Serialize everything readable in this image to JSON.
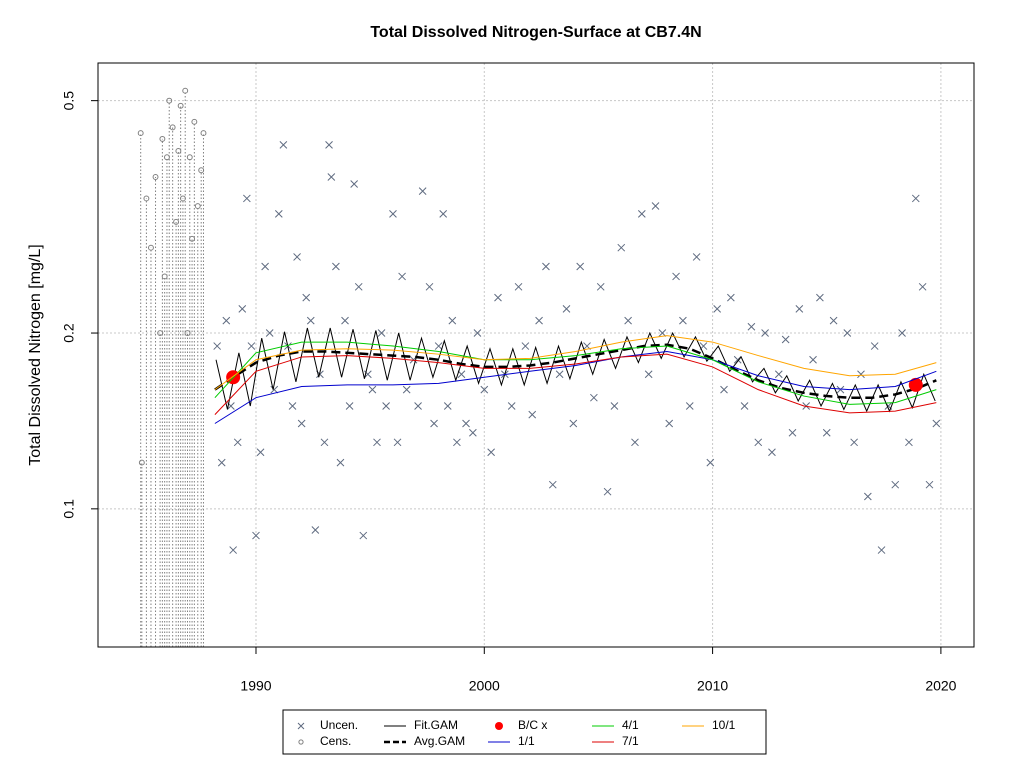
{
  "chart_data": {
    "type": "scatter",
    "title": "Total Dissolved Nitrogen-Surface at CB7.4N",
    "ylabel": "Total Dissolved Nitrogen [mg/L]",
    "log_y": true,
    "grid": true,
    "legend": "bottom",
    "xlim": [
      1983.08,
      2021.45
    ],
    "ylim": [
      0.058,
      0.58
    ],
    "xticks": [
      1990,
      2000,
      2010,
      2020
    ],
    "yticks": [
      0.1,
      0.2,
      0.5
    ],
    "series": [
      {
        "name": "Uncen.",
        "kind": "points",
        "marker": "x",
        "color": "#5f6b80",
        "x": [
          1988.3,
          1988.5,
          1988.7,
          1988.9,
          1989.0,
          1989.2,
          1989.4,
          1989.6,
          1989.8,
          1990.0,
          1990.2,
          1990.4,
          1990.6,
          1990.8,
          1991.0,
          1991.2,
          1991.4,
          1991.6,
          1991.8,
          1992.0,
          1992.2,
          1992.4,
          1992.6,
          1992.8,
          1993.0,
          1993.2,
          1993.3,
          1993.5,
          1993.7,
          1993.9,
          1994.1,
          1994.3,
          1994.5,
          1994.7,
          1994.9,
          1995.1,
          1995.3,
          1995.5,
          1995.7,
          1996.0,
          1996.2,
          1996.4,
          1996.6,
          1996.9,
          1997.1,
          1997.3,
          1997.6,
          1997.8,
          1998.0,
          1998.2,
          1998.4,
          1998.6,
          1998.8,
          1999.0,
          1999.2,
          1999.5,
          1999.7,
          2000.0,
          2000.3,
          2000.6,
          2000.9,
          2001.2,
          2001.5,
          2001.8,
          2002.1,
          2002.4,
          2002.7,
          2003.0,
          2003.3,
          2003.6,
          2003.9,
          2004.2,
          2004.5,
          2004.8,
          2005.1,
          2005.4,
          2005.7,
          2006.0,
          2006.3,
          2006.6,
          2006.9,
          2007.2,
          2007.5,
          2007.8,
          2008.1,
          2008.4,
          2008.7,
          2009.0,
          2009.3,
          2009.6,
          2009.9,
          2010.2,
          2010.5,
          2010.8,
          2011.1,
          2011.4,
          2011.7,
          2012.0,
          2012.3,
          2012.6,
          2012.9,
          2013.2,
          2013.5,
          2013.8,
          2014.1,
          2014.4,
          2014.7,
          2015.0,
          2015.3,
          2015.6,
          2015.9,
          2016.2,
          2016.5,
          2016.8,
          2017.1,
          2017.4,
          2017.7,
          2018.0,
          2018.3,
          2018.6,
          2018.9,
          2019.2,
          2019.5,
          2019.8
        ],
        "values": [
          0.19,
          0.12,
          0.21,
          0.15,
          0.085,
          0.13,
          0.22,
          0.34,
          0.19,
          0.09,
          0.125,
          0.26,
          0.2,
          0.16,
          0.32,
          0.42,
          0.19,
          0.15,
          0.27,
          0.14,
          0.23,
          0.21,
          0.092,
          0.17,
          0.13,
          0.42,
          0.37,
          0.26,
          0.12,
          0.21,
          0.15,
          0.36,
          0.24,
          0.09,
          0.17,
          0.16,
          0.13,
          0.2,
          0.15,
          0.32,
          0.13,
          0.25,
          0.16,
          0.18,
          0.15,
          0.35,
          0.24,
          0.14,
          0.19,
          0.32,
          0.15,
          0.21,
          0.13,
          0.17,
          0.14,
          0.135,
          0.2,
          0.16,
          0.125,
          0.23,
          0.17,
          0.15,
          0.24,
          0.19,
          0.145,
          0.21,
          0.26,
          0.11,
          0.17,
          0.22,
          0.14,
          0.26,
          0.19,
          0.155,
          0.24,
          0.107,
          0.15,
          0.28,
          0.21,
          0.13,
          0.32,
          0.17,
          0.33,
          0.2,
          0.14,
          0.25,
          0.21,
          0.15,
          0.27,
          0.19,
          0.12,
          0.22,
          0.16,
          0.23,
          0.18,
          0.15,
          0.205,
          0.13,
          0.2,
          0.125,
          0.17,
          0.195,
          0.135,
          0.22,
          0.15,
          0.18,
          0.23,
          0.135,
          0.21,
          0.16,
          0.2,
          0.13,
          0.17,
          0.105,
          0.19,
          0.085,
          0.15,
          0.11,
          0.2,
          0.13,
          0.34,
          0.24,
          0.11,
          0.14
        ]
      },
      {
        "name": "Cens.",
        "kind": "points",
        "marker": "o",
        "censored": true,
        "color": "#808080",
        "x": [
          1984.95,
          1985.0,
          1985.2,
          1985.4,
          1985.6,
          1985.8,
          1985.9,
          1986.0,
          1986.1,
          1986.2,
          1986.35,
          1986.5,
          1986.6,
          1986.7,
          1986.8,
          1986.9,
          1987.0,
          1987.1,
          1987.2,
          1987.3,
          1987.45,
          1987.6,
          1987.7
        ],
        "values": [
          0.44,
          0.12,
          0.34,
          0.28,
          0.37,
          0.2,
          0.43,
          0.25,
          0.4,
          0.5,
          0.45,
          0.31,
          0.41,
          0.49,
          0.34,
          0.52,
          0.2,
          0.4,
          0.29,
          0.46,
          0.33,
          0.38,
          0.44
        ]
      },
      {
        "name": "Fit.GAM",
        "kind": "line",
        "color": "#000000",
        "width": 1,
        "x": [
          1988.25,
          1988.75,
          1989.25,
          1989.75,
          1990.25,
          1990.75,
          1991.25,
          1991.75,
          1992.25,
          1992.75,
          1993.25,
          1993.75,
          1994.25,
          1994.75,
          1995.25,
          1995.75,
          1996.25,
          1996.75,
          1997.25,
          1997.75,
          1998.25,
          1998.75,
          1999.25,
          1999.75,
          2000.25,
          2000.75,
          2001.25,
          2001.75,
          2002.25,
          2002.75,
          2003.25,
          2003.75,
          2004.25,
          2004.75,
          2005.25,
          2005.75,
          2006.25,
          2006.75,
          2007.25,
          2007.75,
          2008.25,
          2008.75,
          2009.25,
          2009.75,
          2010.25,
          2010.75,
          2011.25,
          2011.75,
          2012.25,
          2012.75,
          2013.25,
          2013.75,
          2014.25,
          2014.75,
          2015.25,
          2015.75,
          2016.25,
          2016.75,
          2017.25,
          2017.75,
          2018.25,
          2018.75,
          2019.25,
          2019.75
        ],
        "values": [
          0.18,
          0.148,
          0.185,
          0.15,
          0.196,
          0.16,
          0.201,
          0.165,
          0.204,
          0.168,
          0.204,
          0.168,
          0.203,
          0.167,
          0.202,
          0.166,
          0.2,
          0.166,
          0.196,
          0.168,
          0.194,
          0.166,
          0.19,
          0.164,
          0.188,
          0.163,
          0.188,
          0.163,
          0.189,
          0.164,
          0.19,
          0.167,
          0.193,
          0.17,
          0.195,
          0.174,
          0.197,
          0.178,
          0.2,
          0.181,
          0.2,
          0.182,
          0.197,
          0.179,
          0.19,
          0.172,
          0.182,
          0.165,
          0.174,
          0.158,
          0.169,
          0.153,
          0.166,
          0.15,
          0.164,
          0.148,
          0.163,
          0.147,
          0.163,
          0.147,
          0.165,
          0.149,
          0.17,
          0.153
        ]
      },
      {
        "name": "Avg.GAM",
        "kind": "line",
        "dashed": true,
        "color": "#000000",
        "width": 2.5,
        "x": [
          1988.2,
          1989,
          1990,
          1991,
          1992,
          1993,
          1994,
          1995,
          1996,
          1997,
          1998,
          1999,
          2000,
          2001,
          2002,
          2003,
          2004,
          2005,
          2006,
          2007,
          2008,
          2009,
          2010,
          2011,
          2012,
          2013,
          2014,
          2015,
          2016,
          2017,
          2018,
          2019,
          2019.8
        ],
        "values": [
          0.16,
          0.168,
          0.178,
          0.183,
          0.186,
          0.186,
          0.185,
          0.184,
          0.183,
          0.182,
          0.18,
          0.177,
          0.175,
          0.175,
          0.176,
          0.178,
          0.181,
          0.184,
          0.187,
          0.19,
          0.191,
          0.188,
          0.181,
          0.173,
          0.166,
          0.161,
          0.158,
          0.156,
          0.155,
          0.155,
          0.157,
          0.161,
          0.166
        ]
      },
      {
        "name": "B/C x",
        "kind": "points",
        "marker": "dot",
        "color": "#ff0000",
        "x": [
          1989.0,
          2018.9
        ],
        "values": [
          0.168,
          0.163
        ]
      },
      {
        "name": "1/1",
        "kind": "line",
        "color": "#0000cd",
        "width": 1,
        "x": [
          1988.2,
          1990,
          1992,
          1994,
          1996,
          1998,
          2000,
          2002,
          2004,
          2006,
          2008,
          2010,
          2012,
          2014,
          2016,
          2018,
          2019.8
        ],
        "values": [
          0.14,
          0.155,
          0.162,
          0.163,
          0.163,
          0.164,
          0.168,
          0.172,
          0.176,
          0.182,
          0.186,
          0.18,
          0.169,
          0.162,
          0.16,
          0.162,
          0.172
        ]
      },
      {
        "name": "4/1",
        "kind": "line",
        "color": "#00cc00",
        "width": 1,
        "x": [
          1988.2,
          1990,
          1992,
          1994,
          1996,
          1998,
          2000,
          2002,
          2004,
          2006,
          2008,
          2010,
          2012,
          2014,
          2016,
          2018,
          2019.8
        ],
        "values": [
          0.155,
          0.185,
          0.193,
          0.193,
          0.19,
          0.186,
          0.18,
          0.18,
          0.183,
          0.188,
          0.19,
          0.18,
          0.165,
          0.156,
          0.151,
          0.152,
          0.16
        ]
      },
      {
        "name": "7/1",
        "kind": "line",
        "color": "#dd0000",
        "width": 1,
        "x": [
          1988.2,
          1990,
          1992,
          1994,
          1996,
          1998,
          2000,
          2002,
          2004,
          2006,
          2008,
          2010,
          2012,
          2014,
          2016,
          2018,
          2019.8
        ],
        "values": [
          0.145,
          0.172,
          0.182,
          0.183,
          0.181,
          0.178,
          0.174,
          0.174,
          0.177,
          0.182,
          0.184,
          0.175,
          0.16,
          0.15,
          0.146,
          0.147,
          0.152
        ]
      },
      {
        "name": "10/1",
        "kind": "line",
        "color": "#ffa500",
        "width": 1,
        "x": [
          1988.2,
          1990,
          1992,
          1994,
          1996,
          1998,
          2000,
          2002,
          2004,
          2006,
          2008,
          2010,
          2012,
          2014,
          2016,
          2018,
          2019.8
        ],
        "values": [
          0.16,
          0.18,
          0.187,
          0.188,
          0.187,
          0.184,
          0.18,
          0.181,
          0.186,
          0.193,
          0.198,
          0.193,
          0.183,
          0.174,
          0.169,
          0.17,
          0.178
        ]
      }
    ]
  }
}
